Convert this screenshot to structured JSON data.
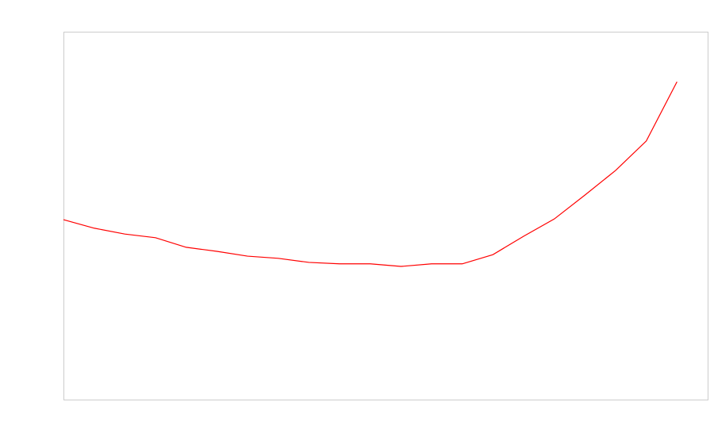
{
  "chart_data": {
    "type": "line",
    "x": [
      0,
      1,
      2,
      3,
      4,
      5,
      6,
      7,
      8,
      9,
      10,
      11,
      12,
      13,
      14,
      15,
      16,
      17,
      18,
      19,
      20
    ],
    "series": [
      {
        "color": "#ff0000",
        "values": [
          48.9,
          46.6,
          45.0,
          44.0,
          41.4,
          40.3,
          39.0,
          38.4,
          37.3,
          36.9,
          36.9,
          36.2,
          36.9,
          36.9,
          39.4,
          44.4,
          49.1,
          55.6,
          62.3,
          70.3,
          86.4
        ]
      }
    ],
    "xlim": [
      0,
      21
    ],
    "ylim": [
      0,
      100
    ],
    "grid": false
  }
}
